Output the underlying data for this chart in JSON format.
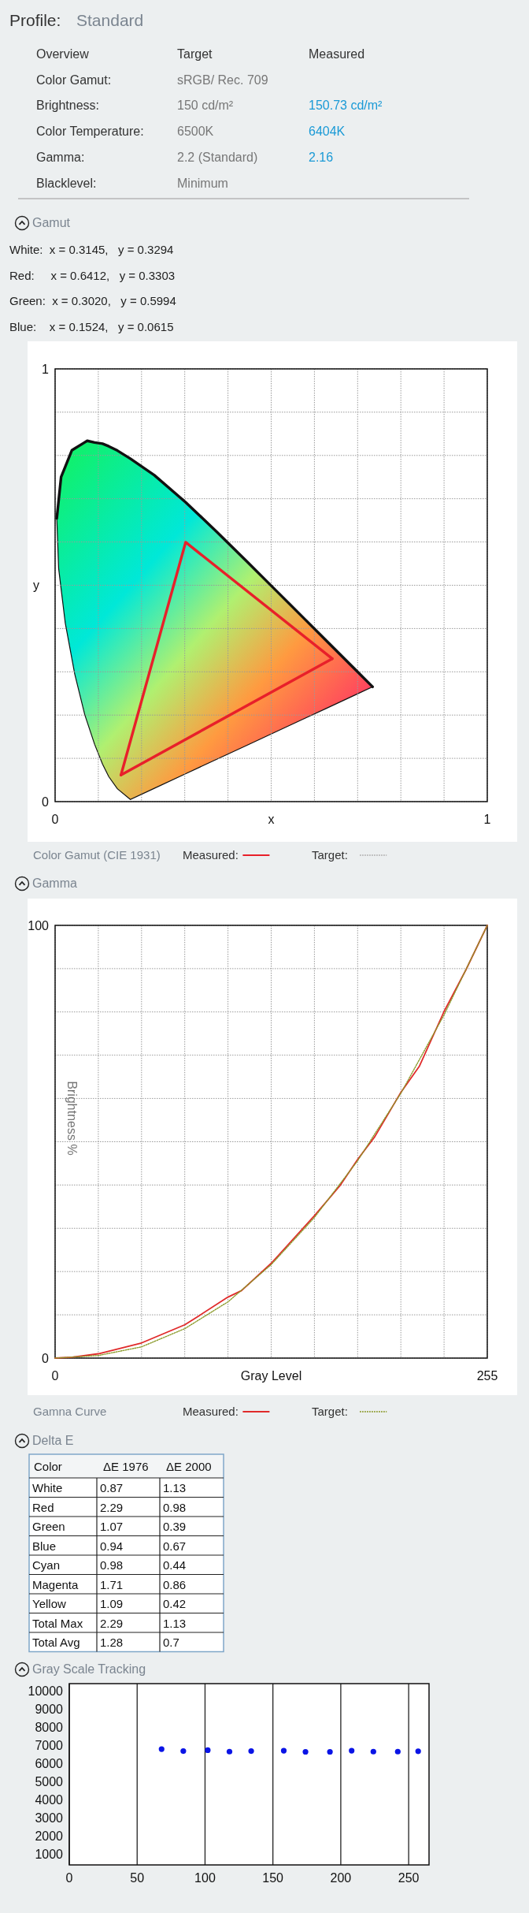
{
  "chart_data": [
    {
      "type": "other",
      "title": "Profile:",
      "subtitle": "Standard",
      "annotations": [
        "Overview",
        "Target",
        "Measured",
        "Color Gamut:",
        "sRGB/ Rec. 709",
        "Brightness:",
        "150 cd/m²",
        "150.73 cd/m²",
        "Color Temperature:",
        "6500K",
        "6404K",
        "Gamma:",
        "2.2 (Standard)",
        "2.16",
        "Blacklevel:",
        "Minimum"
      ]
    },
    {
      "type": "line",
      "title": "Gamut",
      "xlabel": "x",
      "ylabel": "y",
      "legend_title": "Color Gamut (CIE 1931)",
      "legend": "bottom",
      "grid": true,
      "annotations": [
        "White:  x = 0.3145,   y = 0.3294",
        "Red:     x = 0.6412,   y = 0.3303",
        "Green:  x = 0.3020,   y = 0.5994",
        "Blue:    x = 0.1524,   y = 0.0615"
      ],
      "xlim": [
        0,
        1
      ],
      "ylim": [
        0,
        1
      ],
      "xticks": [
        0,
        {
          "value": 0.1,
          "label": null
        },
        {
          "value": 0.2,
          "label": null
        },
        {
          "value": 0.3,
          "label": null
        },
        {
          "value": 0.4,
          "label": null
        },
        {
          "value": 0.5,
          "label": null
        },
        {
          "value": 0.6,
          "label": null
        },
        {
          "value": 0.7,
          "label": null
        },
        {
          "value": 0.8,
          "label": null
        },
        {
          "value": 0.9,
          "label": null
        },
        1
      ],
      "yticks": [
        0,
        {
          "value": 0.1,
          "label": null
        },
        {
          "value": 0.2,
          "label": null
        },
        {
          "value": 0.3,
          "label": null
        },
        {
          "value": 0.4,
          "label": null
        },
        {
          "value": 0.5,
          "label": null
        },
        {
          "value": 0.6,
          "label": null
        },
        {
          "value": 0.7,
          "label": null
        },
        {
          "value": 0.8,
          "label": null
        },
        {
          "value": 0.9,
          "label": null
        },
        1
      ],
      "series": [
        {
          "color": "#111111",
          "line_style": "solid",
          "x": [
            0.0039,
            0.0082,
            0.0139,
            0.0235,
            0.0389,
            0.0454,
            0.0687,
            0.0743,
            0.0913,
            0.1096,
            0.1241,
            0.144,
            0.1741,
            0.2296,
            0.3016,
            0.3731,
            0.4441,
            0.5125,
            0.5752,
            0.627,
            0.6915,
            0.7347
          ],
          "values": [
            0.6548,
            0.696,
            0.7502,
            0.774,
            0.812,
            0.816,
            0.8303,
            0.8338,
            0.83,
            0.8271,
            0.8212,
            0.8113,
            0.7925,
            0.7543,
            0.6923,
            0.6245,
            0.5547,
            0.4866,
            0.4242,
            0.3725,
            0.3083,
            0.2653
          ],
          "upper": [
            0.6548,
            0.696,
            0.7502,
            0.774,
            0.812,
            0.816,
            0.8303,
            0.8338,
            0.83,
            0.8271,
            0.8212,
            0.8113,
            0.7925,
            0.7543,
            0.6923,
            0.6245,
            0.5547,
            0.4866,
            0.4242,
            0.3725,
            0.3083,
            0.2653
          ],
          "lower": [
            0.6548,
            0.5384,
            0.4916,
            0.4127,
            0.33,
            0.295,
            0.2007,
            0.1838,
            0.1327,
            0.0868,
            0.0578,
            0.0297,
            0.005,
            0.0308,
            0.0642,
            0.0974,
            0.1303,
            0.1621,
            0.1912,
            0.2152,
            0.2452,
            0.2653
          ]
        },
        {
          "name": "Measured:",
          "color": "#e8202a",
          "line_style": "solid",
          "x": [
            0.1524,
            0.302,
            0.6412
          ],
          "values": [
            0.0615,
            0.5994,
            0.3303
          ]
        },
        {
          "color": "#e8202a",
          "line_style": "solid",
          "x": [
            0.1524,
            0.6412
          ],
          "values": [
            0.0615,
            0.3303
          ]
        },
        {
          "name": "Target:",
          "color": "#b4b4b4",
          "line_style": "dotted",
          "values": [
            null,
            null,
            null
          ]
        }
      ]
    },
    {
      "type": "line",
      "title": "Gamma",
      "xlabel": "Gray Level",
      "ylabel": "Brightness %",
      "legend_title": "Gamna Curve",
      "legend": "bottom",
      "grid": true,
      "xlim": [
        0,
        255
      ],
      "ylim": [
        0,
        100
      ],
      "xticks": [
        0,
        {
          "value": 25.5,
          "label": null
        },
        {
          "value": 51,
          "label": null
        },
        {
          "value": 76.5,
          "label": null
        },
        {
          "value": 102,
          "label": null
        },
        {
          "value": 127.5,
          "label": null
        },
        {
          "value": 153,
          "label": null
        },
        {
          "value": 178.5,
          "label": null
        },
        {
          "value": 204,
          "label": null
        },
        {
          "value": 229.5,
          "label": null
        },
        255
      ],
      "yticks": [
        0,
        {
          "value": 10,
          "label": null
        },
        {
          "value": 20,
          "label": null
        },
        {
          "value": 30,
          "label": null
        },
        {
          "value": 40,
          "label": null
        },
        {
          "value": 50,
          "label": null
        },
        {
          "value": 60,
          "label": null
        },
        {
          "value": 70,
          "label": null
        },
        {
          "value": 80,
          "label": null
        },
        {
          "value": 90,
          "label": null
        },
        100
      ],
      "series": [
        {
          "name": "Measured:",
          "color": "#e02a2a",
          "line_style": "solid",
          "x": [
            0,
            10,
            25.5,
            51,
            76.5,
            85,
            102,
            110,
            127.5,
            153,
            168,
            178.5,
            188.7,
            204,
            215,
            229.5,
            242.5,
            255
          ],
          "values": [
            0,
            0.2,
            1,
            3.5,
            7.7,
            9.8,
            14.1,
            15.6,
            21.9,
            32.9,
            39.8,
            45.9,
            51.2,
            61.4,
            67.5,
            80.1,
            89.8,
            100
          ]
        },
        {
          "name": "Target:",
          "color": "#8a9a2a",
          "line_style": "dotted",
          "x": [
            0,
            25.5,
            51,
            76.5,
            102,
            127.5,
            153,
            178.5,
            204,
            229.5,
            255
          ],
          "values": [
            0,
            0.6,
            2.6,
            6.8,
            13,
            21.6,
            32.5,
            45.6,
            61.2,
            79.3,
            100
          ]
        }
      ]
    },
    {
      "type": "other",
      "title": "Delta E",
      "xlabel": "Color",
      "data_labels": true,
      "categories": [
        "White",
        "Red",
        "Green",
        "Blue",
        "Cyan",
        "Magenta",
        "Yellow",
        "Total Max",
        "Total Avg"
      ],
      "series": [
        {
          "name": "ΔE 1976",
          "values": [
            0.87,
            2.29,
            1.07,
            0.94,
            0.98,
            1.71,
            1.09,
            2.29,
            1.28
          ]
        },
        {
          "name": "ΔE 2000",
          "values": [
            1.13,
            0.98,
            0.39,
            0.67,
            0.44,
            0.86,
            0.42,
            1.13,
            0.7
          ]
        }
      ]
    },
    {
      "type": "scatter",
      "title": "Gray Scale Tracking",
      "grid": "x",
      "marker": "circle",
      "color": "#0a14e6",
      "xlim": [
        0,
        265
      ],
      "ylim": [
        400,
        10400
      ],
      "xticks": [
        0,
        50,
        100,
        150,
        200,
        250
      ],
      "yticks": [
        1000,
        2000,
        3000,
        4000,
        5000,
        6000,
        7000,
        8000,
        9000,
        10000
      ],
      "x": [
        68,
        84,
        102,
        118,
        134,
        158,
        174,
        192,
        208,
        224,
        242,
        257
      ],
      "values": [
        6790,
        6680,
        6730,
        6650,
        6680,
        6700,
        6640,
        6640,
        6700,
        6650,
        6650,
        6670
      ]
    }
  ]
}
